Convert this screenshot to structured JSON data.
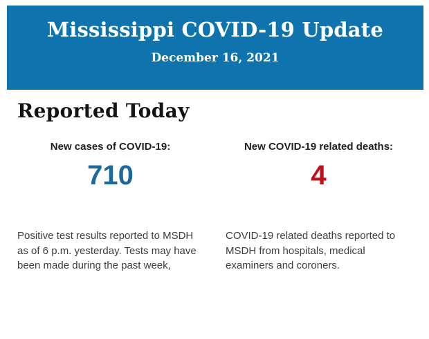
{
  "banner": {
    "title": "Mississippi COVID-19 Update",
    "date": "December 16, 2021",
    "background_color": "#0f74ad",
    "text_color": "#ffffff"
  },
  "section": {
    "heading": "Reported Today"
  },
  "stats": [
    {
      "label": "New cases of COVID-19:",
      "value": "710",
      "value_color": "#1d699e",
      "description": "Positive test results reported to MSDH as of 6 p.m. yesterday. Tests may have been made during the past week,"
    },
    {
      "label": "New COVID-19 related deaths:",
      "value": "4",
      "value_color": "#c20e1a",
      "description": "COVID-19 related deaths reported to MSDH from hospitals, medical examiners and coroners."
    }
  ]
}
